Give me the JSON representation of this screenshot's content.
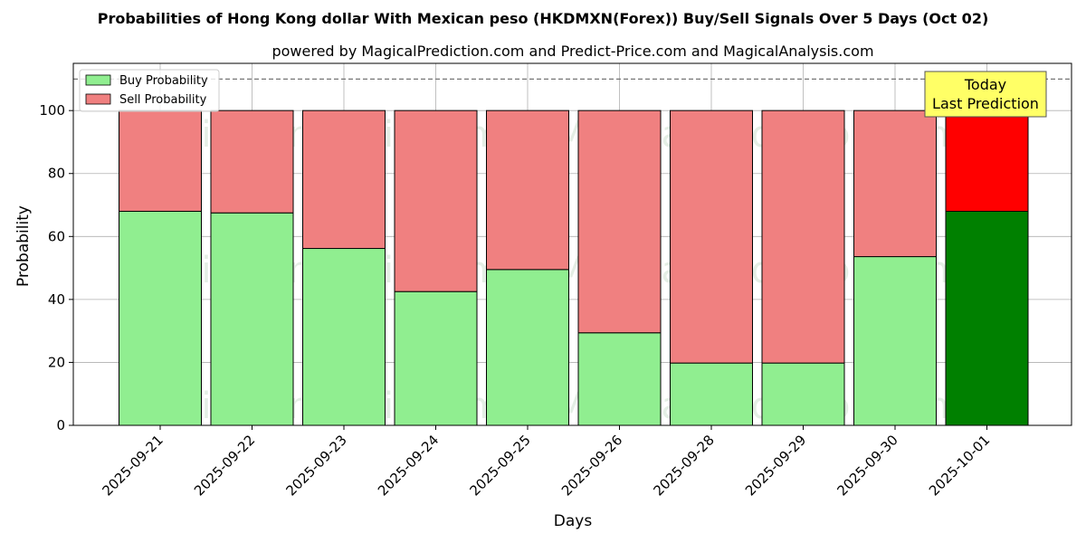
{
  "chart_data": {
    "type": "bar",
    "stacked": true,
    "title": "Probabilities of Hong Kong dollar With Mexican peso (HKDMXN(Forex)) Buy/Sell Signals Over 5 Days (Oct 02)",
    "subtitle": "powered by MagicalPrediction.com and Predict-Price.com and MagicalAnalysis.com",
    "xlabel": "Days",
    "ylabel": "Probability",
    "ylim": [
      0,
      115
    ],
    "yticks": [
      0,
      20,
      40,
      60,
      80,
      100
    ],
    "grid": true,
    "legend_position": "top-left",
    "reference_line": 110,
    "categories": [
      "2025-09-21",
      "2025-09-22",
      "2025-09-23",
      "2025-09-24",
      "2025-09-25",
      "2025-09-26",
      "2025-09-28",
      "2025-09-29",
      "2025-09-30",
      "2025-10-01"
    ],
    "series": [
      {
        "name": "Buy Probability",
        "color": "#90ee90",
        "highlight_color": "#008000",
        "values": [
          68,
          67.5,
          56.2,
          42.5,
          49.5,
          29.4,
          19.8,
          19.8,
          53.6,
          68
        ]
      },
      {
        "name": "Sell Probability",
        "color": "#f08080",
        "highlight_color": "#ff0000",
        "values": [
          32,
          32.5,
          43.8,
          57.5,
          50.5,
          70.6,
          80.2,
          80.2,
          46.4,
          32
        ]
      }
    ],
    "highlight_index": 9,
    "annotation": {
      "line1": "Today",
      "line2": "Last Prediction",
      "bg_color": "#ffff66"
    },
    "watermarks": [
      "MagicalAnalysis.com",
      "MagicalPrediction.com"
    ]
  }
}
